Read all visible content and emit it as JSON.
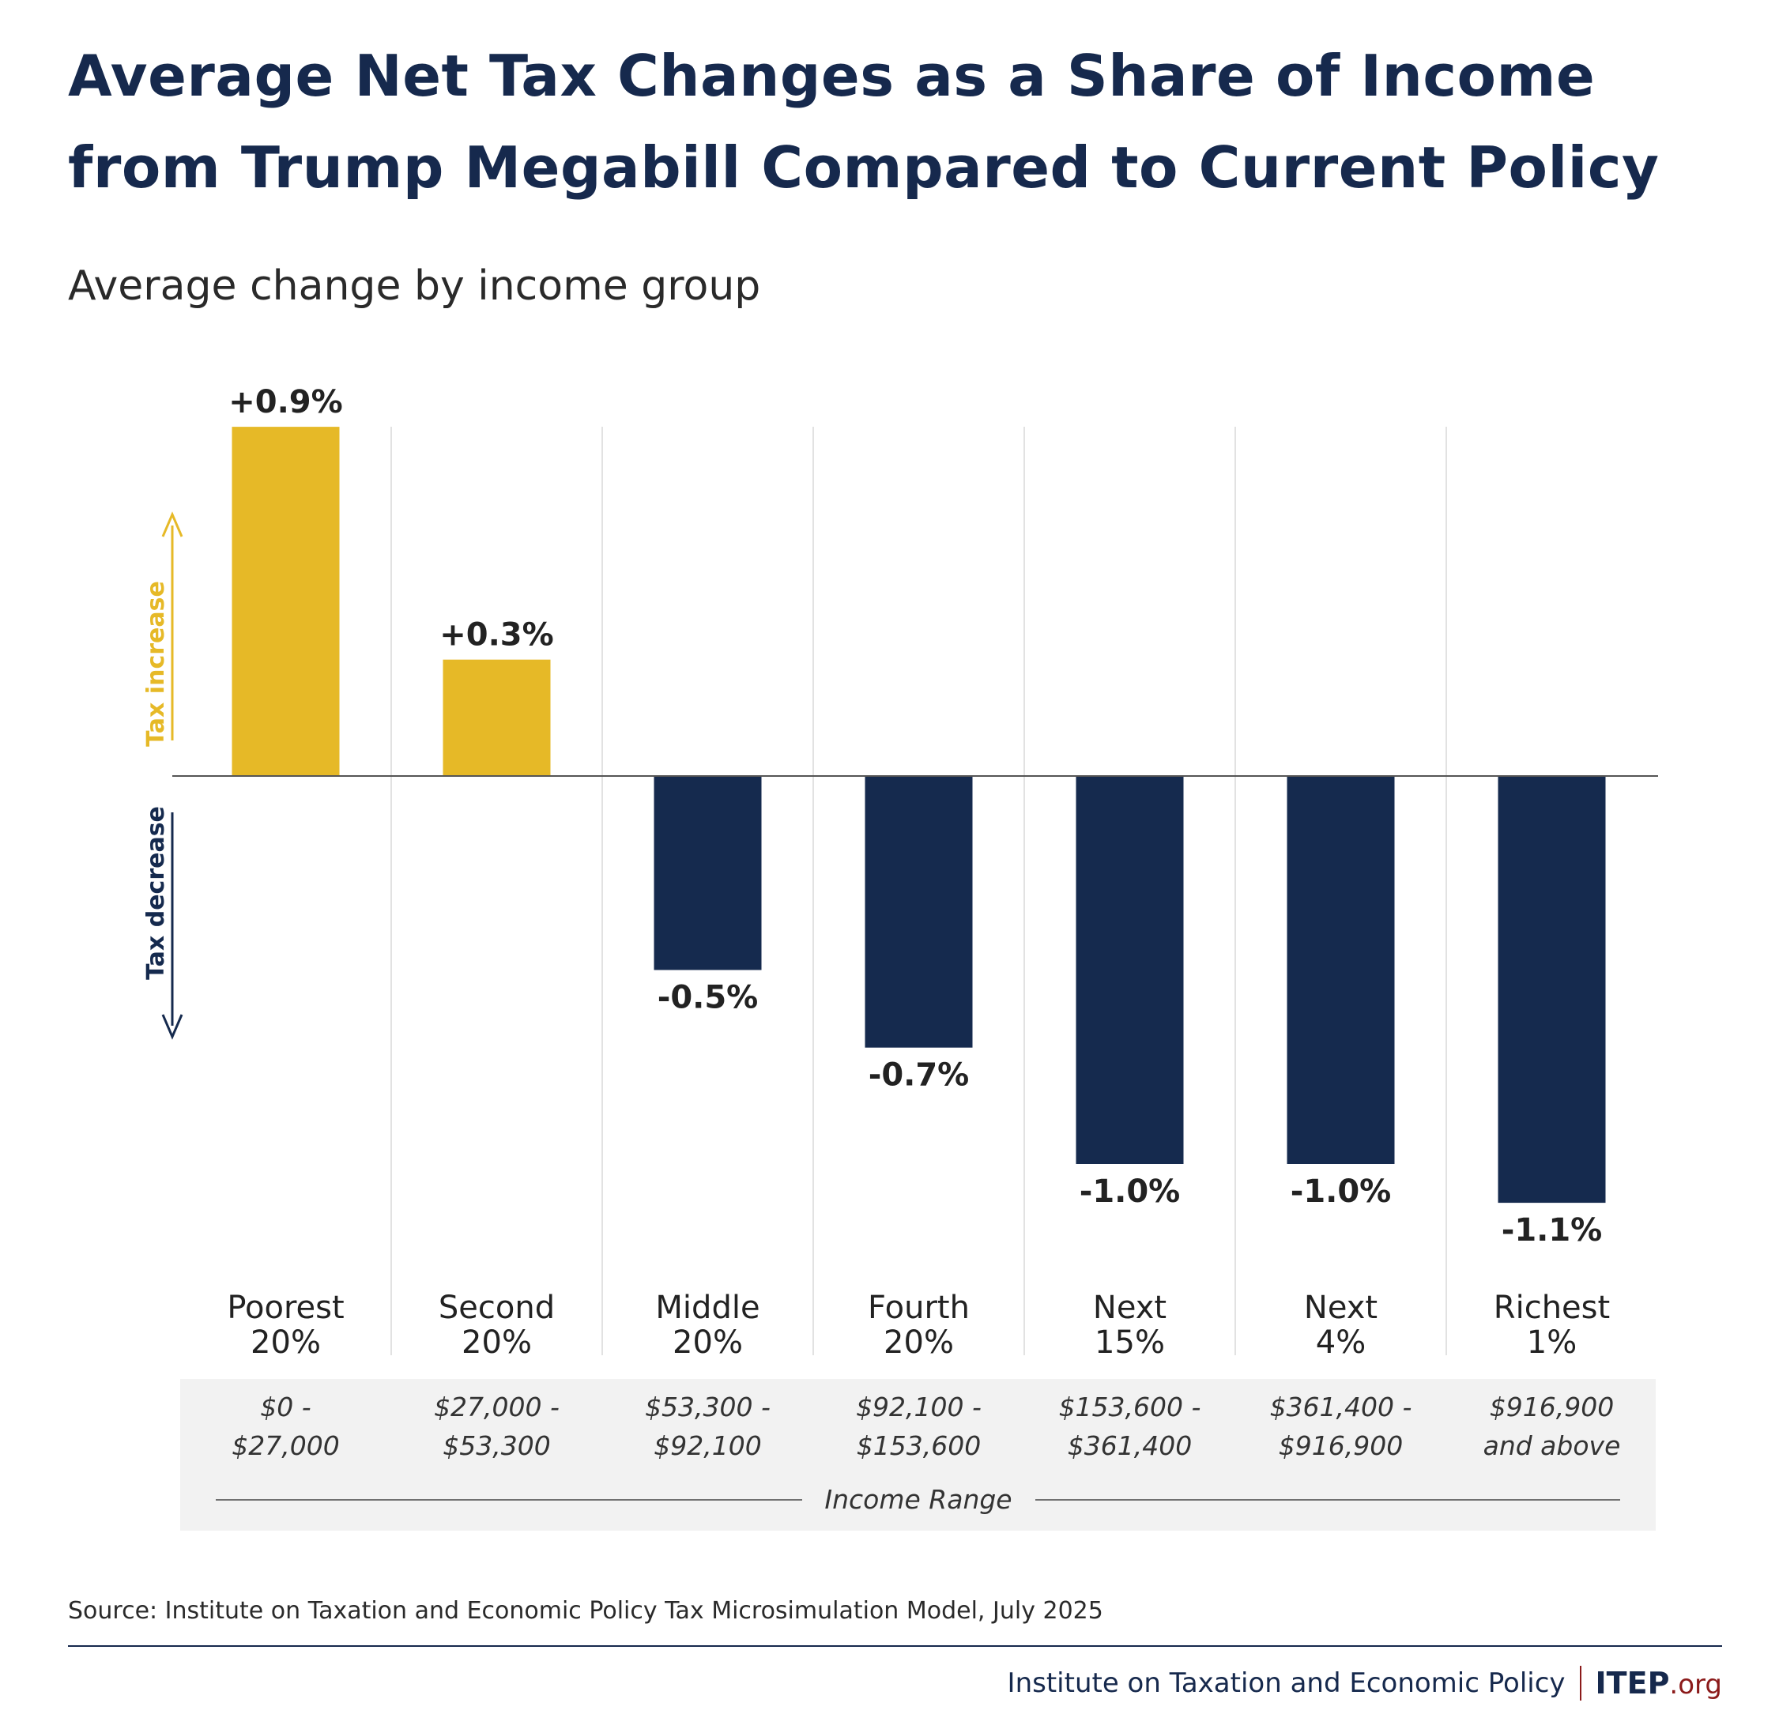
{
  "title_line1": "Average Net Tax Changes as a Share of Income",
  "title_line2": "from Trump Megabill Compared to Current Policy",
  "subtitle": "Average change by income group",
  "source": "Source: Institute on Taxation and Economic Policy Tax Microsimulation Model, July 2025",
  "footer": {
    "org_name": "Institute on Taxation and Economic Policy",
    "brand": "ITEP",
    "brand_suffix": ".org"
  },
  "colors": {
    "increase": "#e6b927",
    "decrease": "#152a4e",
    "income_band_bg": "#f2f2f2",
    "gridline": "#e2e2e2",
    "brand_red": "#8b1a1a"
  },
  "chart_data": {
    "type": "bar",
    "categories": [
      "Poorest 20%",
      "Second 20%",
      "Middle 20%",
      "Fourth 20%",
      "Next 15%",
      "Next 4%",
      "Richest 1%"
    ],
    "category_lines": [
      [
        "Poorest",
        "20%"
      ],
      [
        "Second",
        "20%"
      ],
      [
        "Middle",
        "20%"
      ],
      [
        "Fourth",
        "20%"
      ],
      [
        "Next",
        "15%"
      ],
      [
        "Next",
        "4%"
      ],
      [
        "Richest",
        "1%"
      ]
    ],
    "values": [
      0.9,
      0.3,
      -0.5,
      -0.7,
      -1.0,
      -1.0,
      -1.1
    ],
    "value_labels": [
      "+0.9%",
      "+0.3%",
      "-0.5%",
      "-0.7%",
      "-1.0%",
      "-1.0%",
      "-1.1%"
    ],
    "income_ranges": [
      [
        "$0 -",
        "$27,000"
      ],
      [
        "$27,000 -",
        "$53,300"
      ],
      [
        "$53,300 -",
        "$92,100"
      ],
      [
        "$92,100 -",
        "$153,600"
      ],
      [
        "$153,600 -",
        "$361,400"
      ],
      [
        "$361,400 -",
        "$916,900"
      ],
      [
        "$916,900",
        "and above"
      ]
    ],
    "income_range_label": "Income Range",
    "up_arrow_label": "Tax increase",
    "down_arrow_label": "Tax decrease",
    "ylim": [
      -1.1,
      0.9
    ],
    "grid": true
  }
}
